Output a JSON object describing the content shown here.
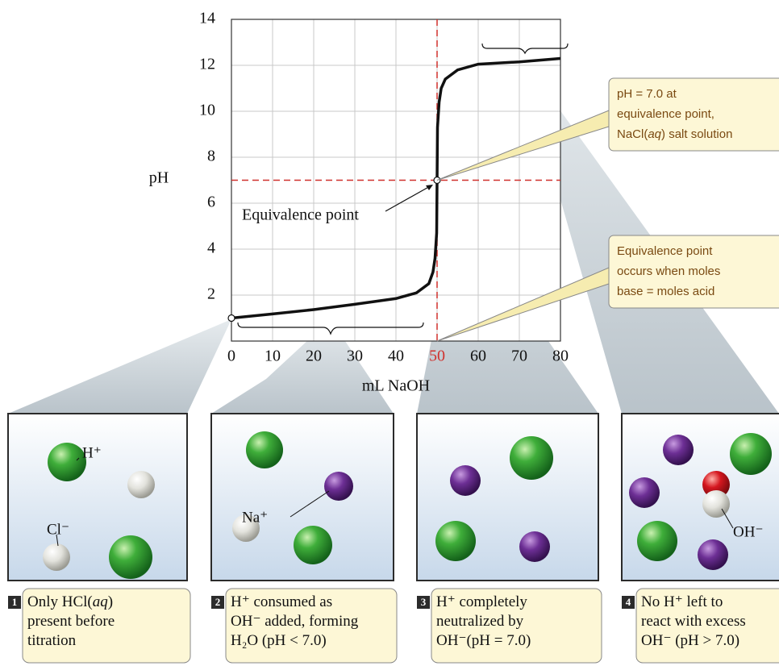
{
  "chart_data": {
    "type": "line",
    "x": [
      0,
      10,
      20,
      30,
      40,
      45,
      48,
      49,
      49.5,
      49.9,
      50,
      50.1,
      50.5,
      51,
      52,
      55,
      60,
      70,
      80
    ],
    "values": [
      1.0,
      1.18,
      1.37,
      1.6,
      1.85,
      2.1,
      2.5,
      3.0,
      3.6,
      4.7,
      7,
      9.3,
      10.4,
      11.0,
      11.4,
      11.8,
      12.05,
      12.15,
      12.3
    ],
    "color": "#111111",
    "xlim": [
      0,
      80
    ],
    "ylim": [
      0,
      14
    ],
    "xticks": [
      0,
      10,
      20,
      30,
      40,
      50,
      60,
      70,
      80
    ],
    "yticks": [
      2,
      4,
      6,
      8,
      10,
      12,
      14
    ],
    "grid": true,
    "xlabel": "mL NaOH",
    "ylabel": "pH",
    "equivalence": {
      "x": 50,
      "y": 7,
      "label": "Equivalence point",
      "color": "#d0312d"
    }
  },
  "callouts": [
    {
      "lines": [
        [
          "pH = 7.0 at"
        ],
        [
          "equivalence point,"
        ],
        [
          "NaCl(",
          "aq",
          ") salt solution"
        ]
      ]
    },
    {
      "lines": [
        [
          "Equivalence point"
        ],
        [
          "occurs when moles"
        ],
        [
          "base = moles acid"
        ]
      ]
    }
  ],
  "panels": [
    {
      "number": "1",
      "labels": [
        "H⁺",
        "Cl⁻"
      ],
      "caption": [
        [
          "Only HCl(",
          "aq",
          ")"
        ],
        [
          "present before"
        ],
        [
          "titration"
        ]
      ]
    },
    {
      "number": "2",
      "labels": [
        "Na⁺"
      ],
      "caption": [
        [
          "H⁺ consumed as"
        ],
        [
          "OH⁻ added, forming"
        ],
        [
          "H₂O (pH < 7.0)"
        ]
      ]
    },
    {
      "number": "3",
      "labels": [],
      "caption": [
        [
          "H⁺ completely"
        ],
        [
          "neutralized by"
        ],
        [
          "OH⁻(pH = 7.0)"
        ]
      ]
    },
    {
      "number": "4",
      "labels": [
        "OH⁻"
      ],
      "caption": [
        [
          "No H⁺ left to"
        ],
        [
          "react with excess"
        ],
        [
          "OH⁻ (pH > 7.0)"
        ]
      ]
    }
  ]
}
